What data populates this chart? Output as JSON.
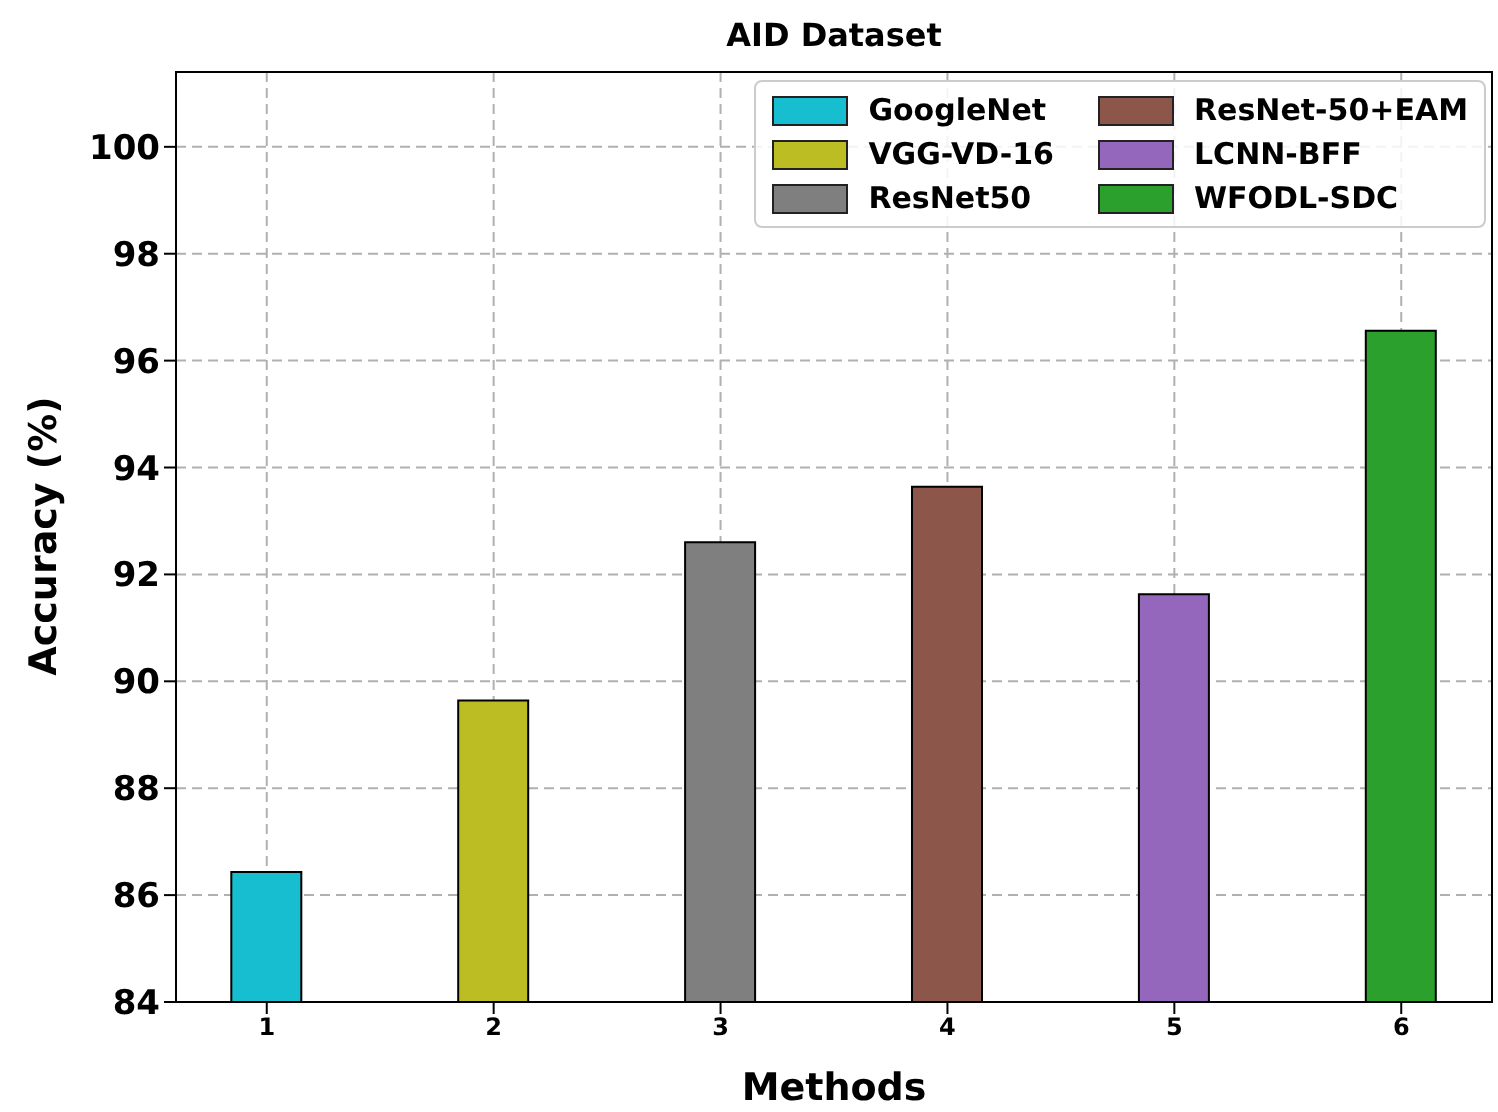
{
  "chart_data": {
    "type": "bar",
    "title": "AID Dataset",
    "xlabel": "Methods",
    "ylabel": "Accuracy (%)",
    "series": [
      {
        "name": "GoogleNet",
        "color": "#17becf",
        "x": [
          1
        ],
        "values": [
          86.43
        ]
      },
      {
        "name": "VGG-VD-16",
        "color": "#bcbd22",
        "x": [
          2
        ],
        "values": [
          89.64
        ]
      },
      {
        "name": "ResNet50",
        "color": "#7f7f7f",
        "x": [
          3
        ],
        "values": [
          92.6
        ]
      },
      {
        "name": "ResNet-50+EAM",
        "color": "#8c564b",
        "x": [
          4
        ],
        "values": [
          93.64
        ]
      },
      {
        "name": "LCNN-BFF",
        "color": "#9467bd",
        "x": [
          5
        ],
        "values": [
          91.63
        ]
      },
      {
        "name": "WFODL-SDC",
        "color": "#2ca02c",
        "x": [
          6
        ],
        "values": [
          96.56
        ]
      }
    ],
    "xlim": [
      0.6,
      6.4
    ],
    "xticks": [
      1,
      2,
      3,
      4,
      5,
      6
    ],
    "ylim": [
      84,
      101.4
    ],
    "yticks": [
      84,
      86,
      88,
      90,
      92,
      94,
      96,
      98,
      100
    ],
    "grid": true,
    "legend": "top right"
  }
}
